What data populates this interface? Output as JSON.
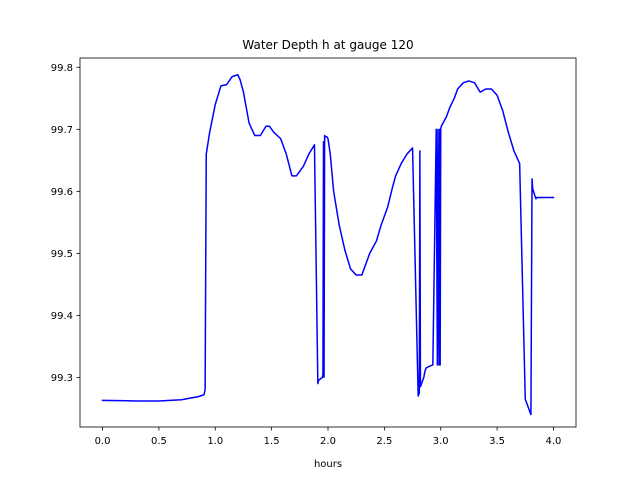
{
  "chart_data": {
    "type": "line",
    "title": "Water Depth h at gauge 120",
    "xlabel": "hours",
    "ylabel": "",
    "xlim": [
      -0.2,
      4.2
    ],
    "ylim": [
      99.22,
      99.815
    ],
    "xticks": [
      0.0,
      0.5,
      1.0,
      1.5,
      2.0,
      2.5,
      3.0,
      3.5,
      4.0
    ],
    "xtick_labels": [
      "0.0",
      "0.5",
      "1.0",
      "1.5",
      "2.0",
      "2.5",
      "3.0",
      "3.5",
      "4.0"
    ],
    "yticks": [
      99.3,
      99.4,
      99.5,
      99.6,
      99.7,
      99.8
    ],
    "ytick_labels": [
      "99.3",
      "99.4",
      "99.5",
      "99.6",
      "99.7",
      "99.8"
    ],
    "grid": false,
    "color": "#0000ff",
    "series": [
      {
        "x": [
          0.0,
          0.3,
          0.5,
          0.7,
          0.85,
          0.9,
          0.91,
          0.92,
          0.95,
          1.0,
          1.05,
          1.1,
          1.15,
          1.2,
          1.22,
          1.25,
          1.3,
          1.35,
          1.4,
          1.45,
          1.48,
          1.52,
          1.58,
          1.63,
          1.68,
          1.72,
          1.78,
          1.83,
          1.88,
          1.91,
          1.915,
          1.95,
          1.955,
          1.96,
          1.965,
          1.97,
          1.98,
          1.99,
          2.0,
          2.02,
          2.05,
          2.1,
          2.15,
          2.2,
          2.25,
          2.3,
          2.33,
          2.37,
          2.4,
          2.43,
          2.47,
          2.5,
          2.53,
          2.57,
          2.6,
          2.65,
          2.7,
          2.75,
          2.8,
          2.81,
          2.815,
          2.82,
          2.83,
          2.85,
          2.86,
          2.87,
          2.9,
          2.93,
          2.96,
          2.97,
          2.975,
          2.985,
          2.99,
          2.995,
          3.0,
          3.005,
          3.02,
          3.05,
          3.08,
          3.12,
          3.15,
          3.2,
          3.25,
          3.3,
          3.35,
          3.4,
          3.45,
          3.5,
          3.55,
          3.6,
          3.65,
          3.7,
          3.75,
          3.8,
          3.81,
          3.815,
          3.84,
          3.845,
          3.85,
          3.88,
          3.92,
          3.96,
          4.0
        ],
        "y": [
          99.263,
          99.262,
          99.262,
          99.264,
          99.269,
          99.272,
          99.28,
          99.66,
          99.695,
          99.74,
          99.77,
          99.772,
          99.785,
          99.788,
          99.78,
          99.76,
          99.71,
          99.69,
          99.69,
          99.705,
          99.705,
          99.695,
          99.685,
          99.66,
          99.625,
          99.625,
          99.64,
          99.66,
          99.675,
          99.29,
          99.295,
          99.3,
          99.305,
          99.68,
          99.3,
          99.69,
          99.688,
          99.688,
          99.685,
          99.66,
          99.6,
          99.545,
          99.505,
          99.475,
          99.465,
          99.465,
          99.48,
          99.5,
          99.51,
          99.52,
          99.545,
          99.56,
          99.575,
          99.605,
          99.625,
          99.645,
          99.66,
          99.67,
          99.27,
          99.275,
          99.665,
          99.285,
          99.29,
          99.3,
          99.31,
          99.315,
          99.318,
          99.32,
          99.7,
          99.32,
          99.7,
          99.32,
          99.7,
          99.32,
          99.7,
          99.705,
          99.71,
          99.72,
          99.735,
          99.75,
          99.765,
          99.775,
          99.778,
          99.775,
          99.76,
          99.765,
          99.765,
          99.755,
          99.73,
          99.695,
          99.665,
          99.645,
          99.265,
          99.24,
          99.62,
          99.605,
          99.59,
          99.588,
          99.59,
          99.59,
          99.59,
          99.59,
          99.59
        ]
      }
    ]
  }
}
